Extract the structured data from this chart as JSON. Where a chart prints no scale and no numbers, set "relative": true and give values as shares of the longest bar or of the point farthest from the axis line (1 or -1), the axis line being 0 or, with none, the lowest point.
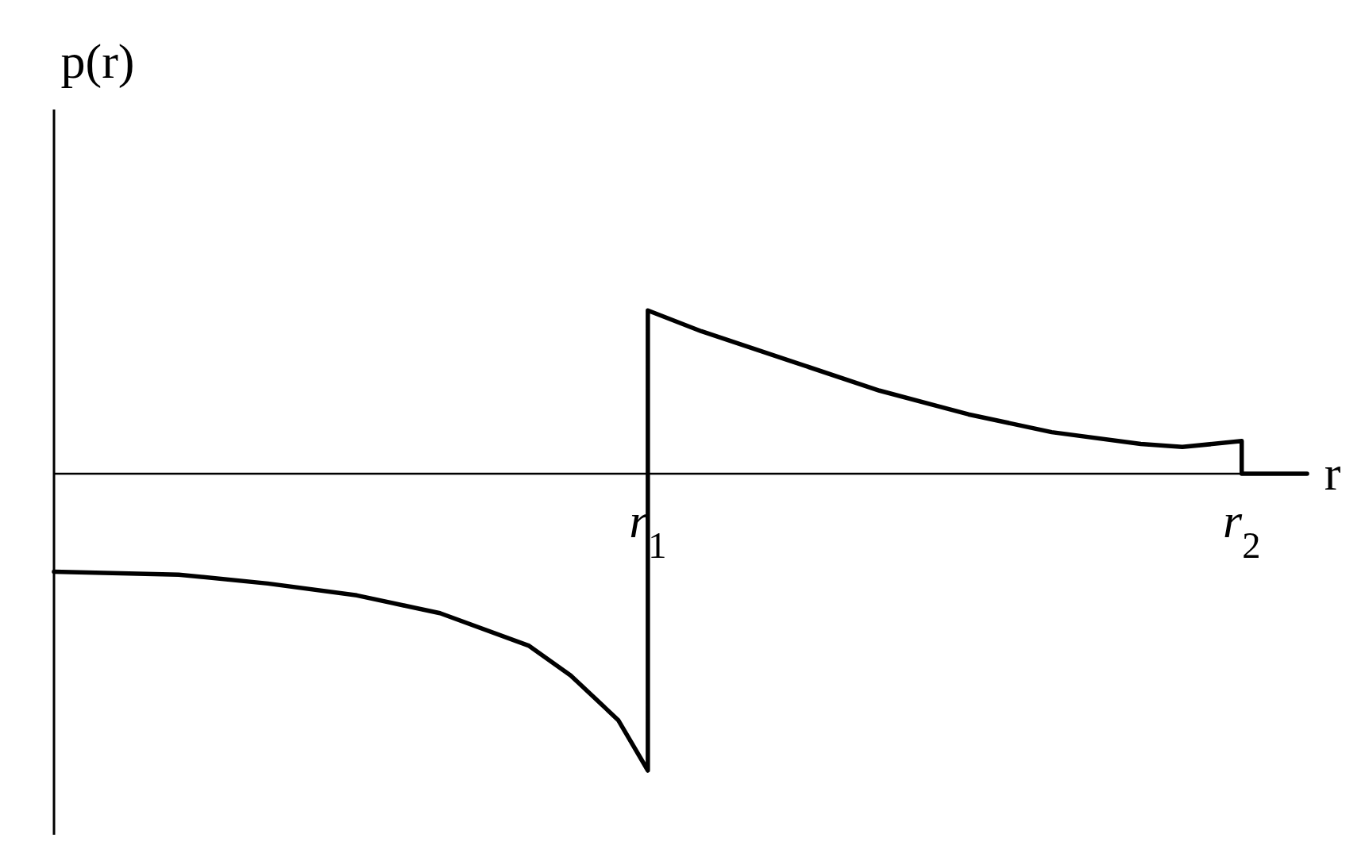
{
  "chart_data": {
    "type": "line",
    "xlabel": "r",
    "ylabel": "p(r)",
    "relative": true,
    "xlim": [
      0,
      2.11
    ],
    "xticks": [
      {
        "value": 1,
        "label": "r$_{1}$"
      },
      {
        "value": 2,
        "label": "r$_{2}$"
      }
    ],
    "line_style": "solid",
    "marker": "none",
    "series": [
      {
        "color": "#000000",
        "x": [
          0,
          0.21,
          0.36,
          0.51,
          0.65,
          0.8,
          0.87,
          0.95,
          1,
          1,
          1.09,
          1.24,
          1.39,
          1.54,
          1.68,
          1.83,
          1.9,
          2,
          2,
          2.11
        ],
        "values": [
          -0.33,
          -0.34,
          -0.37,
          -0.41,
          -0.47,
          -0.58,
          -0.68,
          -0.83,
          -1,
          0.55,
          0.48,
          0.38,
          0.28,
          0.2,
          0.14,
          0.1,
          0.09,
          0.11,
          0,
          0
        ]
      }
    ]
  }
}
